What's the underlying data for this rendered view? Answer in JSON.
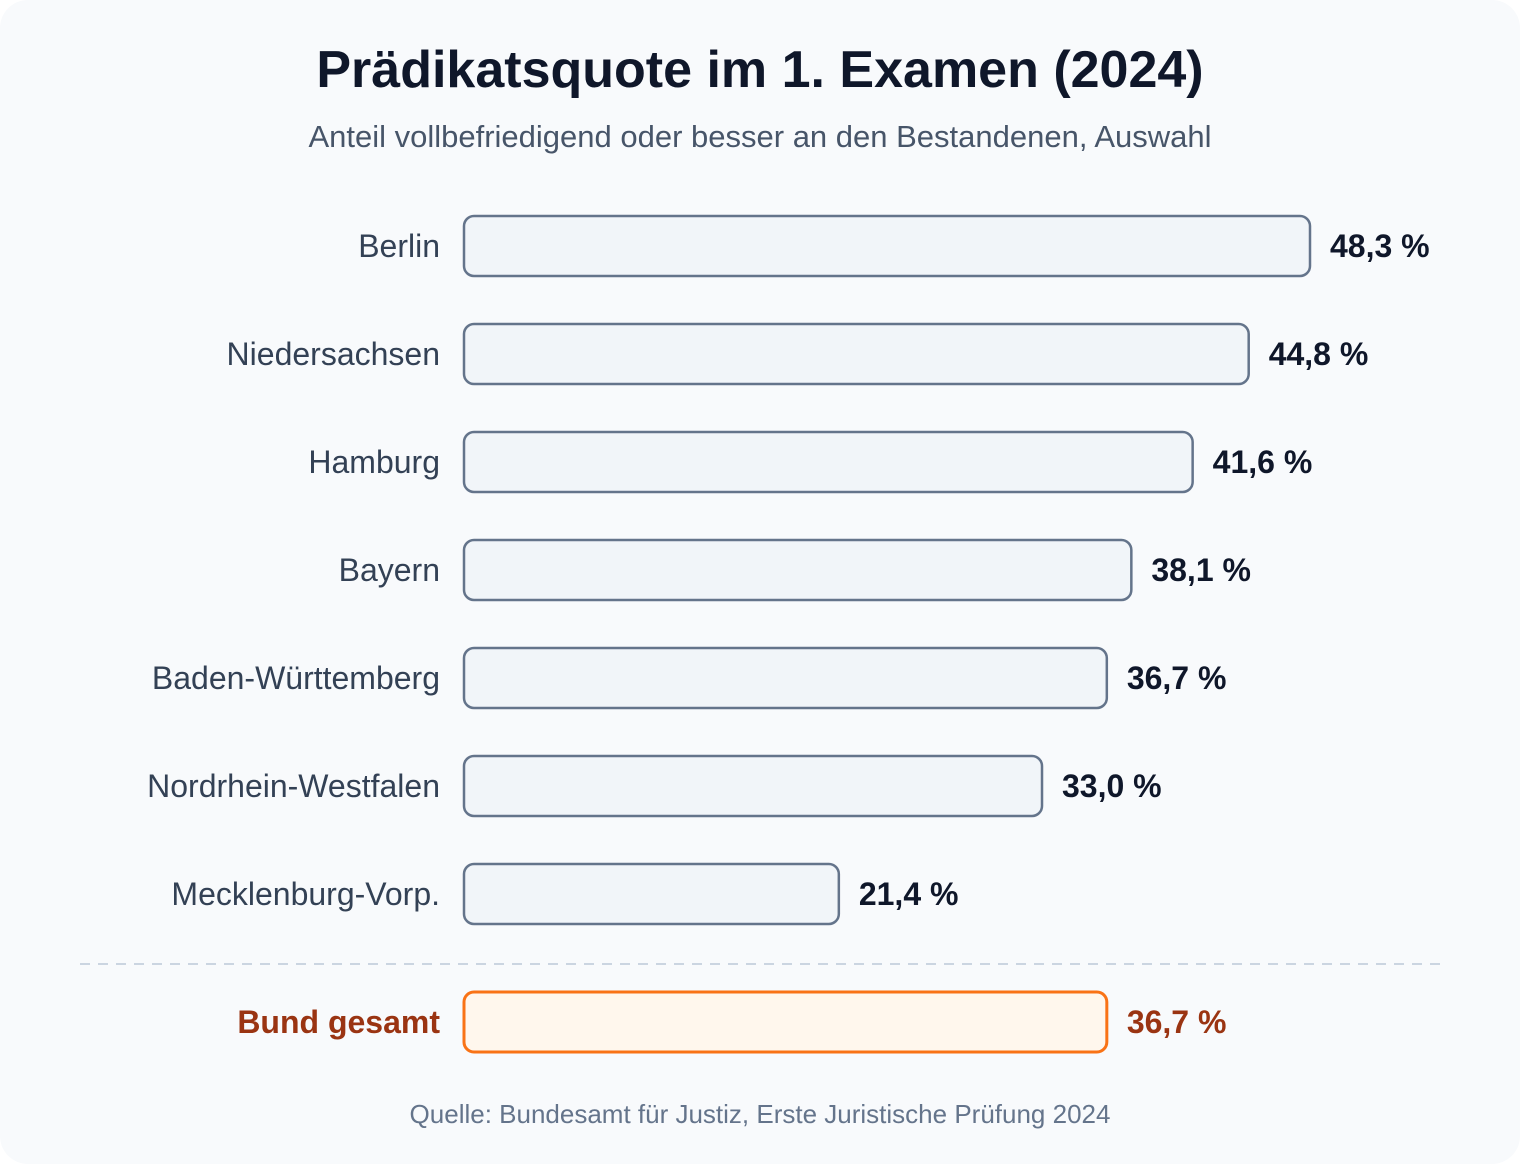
{
  "chart_data": {
    "type": "bar",
    "orientation": "horizontal",
    "title": "Prädikatsquote im 1. Examen (2024)",
    "subtitle": "Anteil vollbefriedigend oder besser an den Bestandenen, Auswahl",
    "categories": [
      "Berlin",
      "Niedersachsen",
      "Hamburg",
      "Bayern",
      "Baden-Württemberg",
      "Nordrhein-Westfalen",
      "Mecklenburg-Vorp."
    ],
    "values": [
      48.3,
      44.8,
      41.6,
      38.1,
      36.7,
      33.0,
      21.4
    ],
    "value_labels": [
      "48,3 %",
      "44,8 %",
      "41,6 %",
      "38,1 %",
      "36,7 %",
      "33,0 %",
      "21,4 %"
    ],
    "total": {
      "category": "Bund gesamt",
      "value": 36.7,
      "value_label": "36,7 %"
    },
    "xlim": [
      0,
      48.3
    ],
    "unit": "%",
    "grid": false,
    "source": "Quelle: Bundesamt für Justiz, Erste Juristische Prüfung 2024"
  },
  "colors": {
    "bar_fill": "#f1f5f9",
    "bar_stroke": "#64748b",
    "total_fill": "#fff7ed",
    "total_stroke": "#f97316",
    "total_text": "#9a3412",
    "separator": "#cbd5e1"
  }
}
